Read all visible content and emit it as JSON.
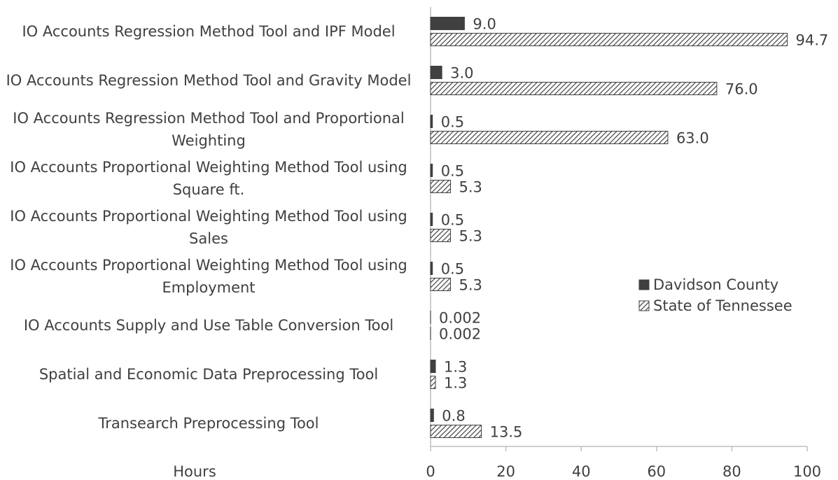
{
  "chart_data": {
    "type": "bar",
    "orientation": "horizontal",
    "categories": [
      "IO Accounts Regression Method Tool and IPF Model",
      "IO Accounts Regression Method Tool and Gravity Model",
      "IO Accounts Regression Method Tool and Proportional Weighting",
      "IO Accounts Proportional Weighting Method Tool using Square ft.",
      "IO Accounts Proportional Weighting Method Tool using  Sales",
      "IO Accounts Proportional Weighting Method Tool using Employment",
      "IO Accounts Supply and Use Table Conversion Tool",
      "Spatial and Economic Data Preprocessing Tool",
      "Transearch Preprocessing Tool"
    ],
    "series": [
      {
        "name": "Davidson County",
        "color": "#404040",
        "hatch": false,
        "values": [
          9.0,
          3.0,
          0.5,
          0.5,
          0.5,
          0.5,
          0.002,
          1.3,
          0.8
        ],
        "value_labels": [
          "9.0",
          "3.0",
          "0.5",
          "0.5",
          "0.5",
          "0.5",
          "0.002",
          "1.3",
          "0.8"
        ]
      },
      {
        "name": "State of Tennessee",
        "color": "#404040",
        "hatch": true,
        "values": [
          94.7,
          76.0,
          63.0,
          5.3,
          5.3,
          5.3,
          0.002,
          1.3,
          13.5
        ],
        "value_labels": [
          "94.7",
          "76.0",
          "63.0",
          "5.3",
          "5.3",
          "5.3",
          "0.002",
          "1.3",
          "13.5"
        ]
      }
    ],
    "xlabel": "Hours",
    "xlim": [
      0,
      100
    ],
    "xticks": [
      0,
      20,
      40,
      60,
      80,
      100
    ],
    "legend": "right",
    "grid": false
  }
}
